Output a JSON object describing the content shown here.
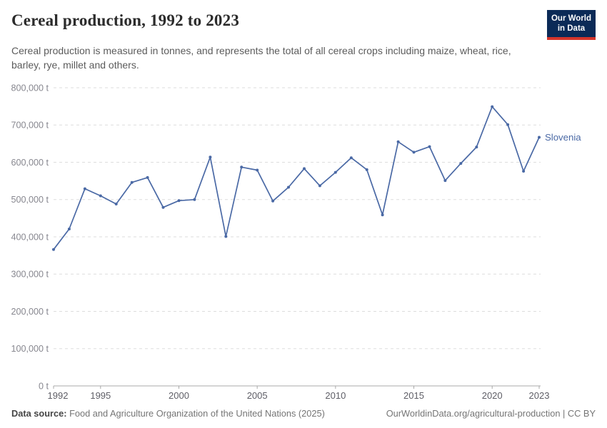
{
  "header": {
    "title": "Cereal production, 1992 to 2023",
    "subtitle": "Cereal production is measured in tonnes, and represents the total of all cereal crops including maize, wheat, rice, barley, rye, millet and others.",
    "logo": {
      "line1": "Our World",
      "line2": "in Data",
      "bg_color": "#0b2a57",
      "accent_color": "#d6352b"
    }
  },
  "chart_data": {
    "type": "line",
    "title": "Cereal production, 1992 to 2023",
    "unit": "t",
    "x": [
      1992,
      1993,
      1994,
      1995,
      1996,
      1997,
      1998,
      1999,
      2000,
      2001,
      2002,
      2003,
      2004,
      2005,
      2006,
      2007,
      2008,
      2009,
      2010,
      2011,
      2012,
      2013,
      2014,
      2015,
      2016,
      2017,
      2018,
      2019,
      2020,
      2021,
      2022,
      2023
    ],
    "series": [
      {
        "name": "Slovenia",
        "color": "#4a69a5",
        "values": [
          366000,
          421000,
          529000,
          510000,
          488000,
          546000,
          559000,
          479000,
          497000,
          500000,
          614000,
          401000,
          587000,
          579000,
          496000,
          533000,
          583000,
          537000,
          573000,
          612000,
          580000,
          459000,
          655000,
          627000,
          642000,
          551000,
          597000,
          641000,
          749000,
          701000,
          576000,
          667000
        ]
      }
    ],
    "xlim": [
      1992,
      2023
    ],
    "ylim": [
      0,
      800000
    ],
    "ytick_step": 100000,
    "xticks": [
      1992,
      1995,
      2000,
      2005,
      2010,
      2015,
      2020,
      2023
    ],
    "grid": "horizontal-dashed",
    "legend_position": "end-of-line",
    "colors": {
      "gridline": "#dddddd",
      "axis_line": "#a8a8a8",
      "y_tick_label": "#87878f",
      "x_tick_label": "#5e5e66"
    }
  },
  "footer": {
    "source_label": "Data source:",
    "source_text": " Food and Agriculture Organization of the United Nations (2025)",
    "right_text": "OurWorldinData.org/agricultural-production | CC BY"
  }
}
